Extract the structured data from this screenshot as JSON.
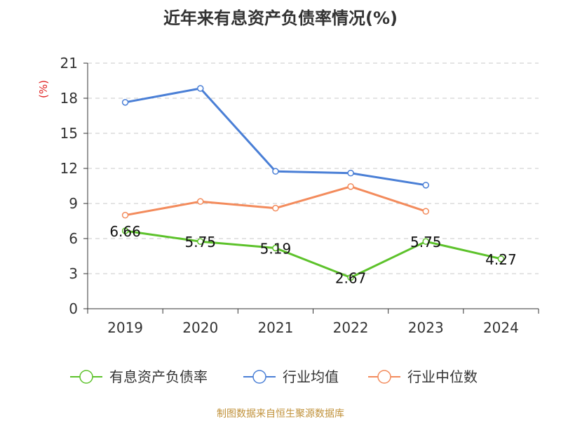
{
  "chart_data": {
    "type": "line",
    "title": "近年来有息资产负债率情况(%)",
    "ylabel": "(%)",
    "xlabel": "",
    "categories": [
      "2019",
      "2020",
      "2021",
      "2022",
      "2023",
      "2024"
    ],
    "ylim": [
      0,
      21
    ],
    "yticks": [
      0,
      3,
      6,
      9,
      12,
      15,
      18,
      21
    ],
    "grid": true,
    "legend_position": "bottom",
    "series": [
      {
        "name": "有息资产负债率",
        "color": "#5dc22b",
        "values": [
          6.66,
          5.75,
          5.19,
          2.67,
          5.75,
          4.27
        ],
        "show_labels": true
      },
      {
        "name": "行业均值",
        "color": "#4a7fd6",
        "values": [
          17.65,
          18.84,
          11.75,
          11.6,
          10.57,
          null
        ],
        "show_labels": false
      },
      {
        "name": "行业中位数",
        "color": "#f38b5c",
        "values": [
          8.0,
          9.17,
          8.6,
          10.45,
          8.33,
          null
        ],
        "show_labels": false
      }
    ]
  },
  "source": "制图数据来自恒生聚源数据库"
}
